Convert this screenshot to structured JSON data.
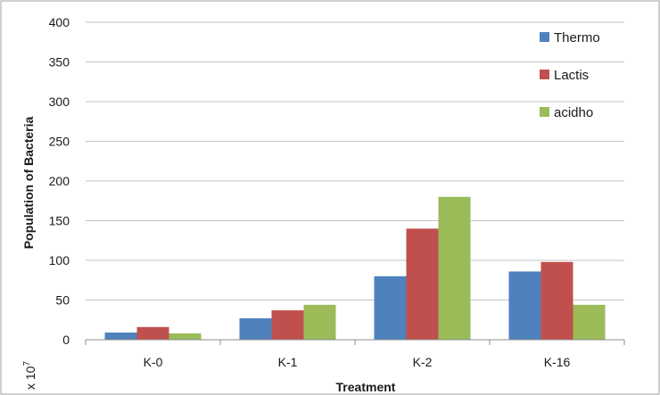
{
  "chart_data": {
    "type": "bar",
    "title": "",
    "xlabel": "Treatment",
    "ylabel": "Population of Bacteria",
    "yunit_prefix": "x 10",
    "yunit_exponent": "7",
    "ylim": [
      0,
      400
    ],
    "yticks": [
      0,
      50,
      100,
      150,
      200,
      250,
      300,
      350,
      400
    ],
    "categories": [
      "K-0",
      "K-1",
      "K-2",
      "K-16"
    ],
    "series": [
      {
        "name": "Thermo",
        "color": "#4f81bd",
        "values": [
          9,
          27,
          80,
          86
        ]
      },
      {
        "name": "Lactis",
        "color": "#c0504d",
        "values": [
          16,
          37,
          140,
          98
        ]
      },
      {
        "name": "acidho",
        "color": "#9bbb59",
        "values": [
          8,
          44,
          180,
          44
        ]
      }
    ],
    "legend_position": "top-right",
    "grid": true,
    "border_color": "#7f7f7f",
    "grid_color": "#c4c4c4"
  }
}
